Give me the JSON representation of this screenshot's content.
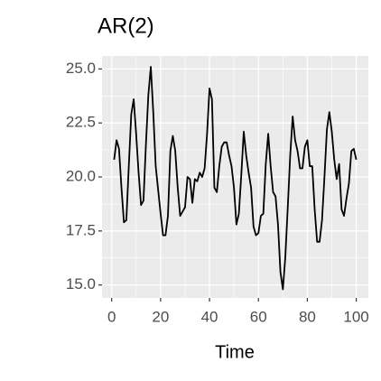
{
  "chart_data": {
    "type": "line",
    "title": "AR(2)",
    "xlabel": "Time",
    "x": [
      1,
      2,
      3,
      4,
      5,
      6,
      7,
      8,
      9,
      10,
      11,
      12,
      13,
      14,
      15,
      16,
      17,
      18,
      19,
      20,
      21,
      22,
      23,
      24,
      25,
      26,
      27,
      28,
      29,
      30,
      31,
      32,
      33,
      34,
      35,
      36,
      37,
      38,
      39,
      40,
      41,
      42,
      43,
      44,
      45,
      46,
      47,
      48,
      49,
      50,
      51,
      52,
      53,
      54,
      55,
      56,
      57,
      58,
      59,
      60,
      61,
      62,
      63,
      64,
      65,
      66,
      67,
      68,
      69,
      70,
      71,
      72,
      73,
      74,
      75,
      76,
      77,
      78,
      79,
      80,
      81,
      82,
      83,
      84,
      85,
      86,
      87,
      88,
      89,
      90,
      91,
      92,
      93,
      94,
      95,
      96,
      97,
      98,
      99,
      100
    ],
    "values": [
      20.8,
      21.7,
      21.3,
      19.5,
      17.9,
      18.0,
      20.5,
      22.9,
      23.6,
      22.0,
      20.2,
      18.7,
      18.9,
      21.5,
      23.8,
      25.1,
      23.0,
      20.5,
      19.4,
      18.3,
      17.3,
      17.3,
      18.2,
      21.2,
      21.9,
      21.2,
      19.5,
      18.2,
      18.4,
      18.6,
      20.0,
      19.9,
      18.8,
      19.9,
      19.8,
      20.2,
      20.0,
      20.4,
      22.0,
      24.1,
      23.6,
      19.5,
      19.3,
      20.5,
      21.4,
      21.6,
      21.6,
      21.0,
      20.5,
      19.5,
      17.8,
      18.3,
      20.1,
      22.1,
      21.0,
      20.2,
      19.5,
      17.7,
      17.3,
      17.4,
      18.2,
      18.3,
      20.6,
      22.0,
      20.5,
      19.3,
      19.1,
      17.8,
      15.6,
      14.8,
      16.3,
      18.6,
      21.0,
      22.8,
      21.7,
      21.2,
      20.4,
      20.4,
      21.4,
      21.7,
      20.5,
      20.5,
      18.5,
      17.0,
      17.0,
      18.0,
      20.0,
      22.2,
      23.0,
      22.1,
      20.8,
      19.9,
      20.6,
      18.5,
      18.2,
      19.0,
      19.7,
      21.2,
      21.3,
      20.8
    ],
    "color": "#000000",
    "xlim": [
      -3.95,
      104.95
    ],
    "xticks": [
      0,
      20,
      40,
      60,
      80,
      100
    ],
    "ylim": [
      14.4,
      25.6
    ],
    "yticks": [
      {
        "value": 15,
        "label": "15.0"
      },
      17.5,
      {
        "value": 20,
        "label": "20.0"
      },
      22.5,
      {
        "value": 25,
        "label": "25.0"
      }
    ],
    "grid": true
  }
}
